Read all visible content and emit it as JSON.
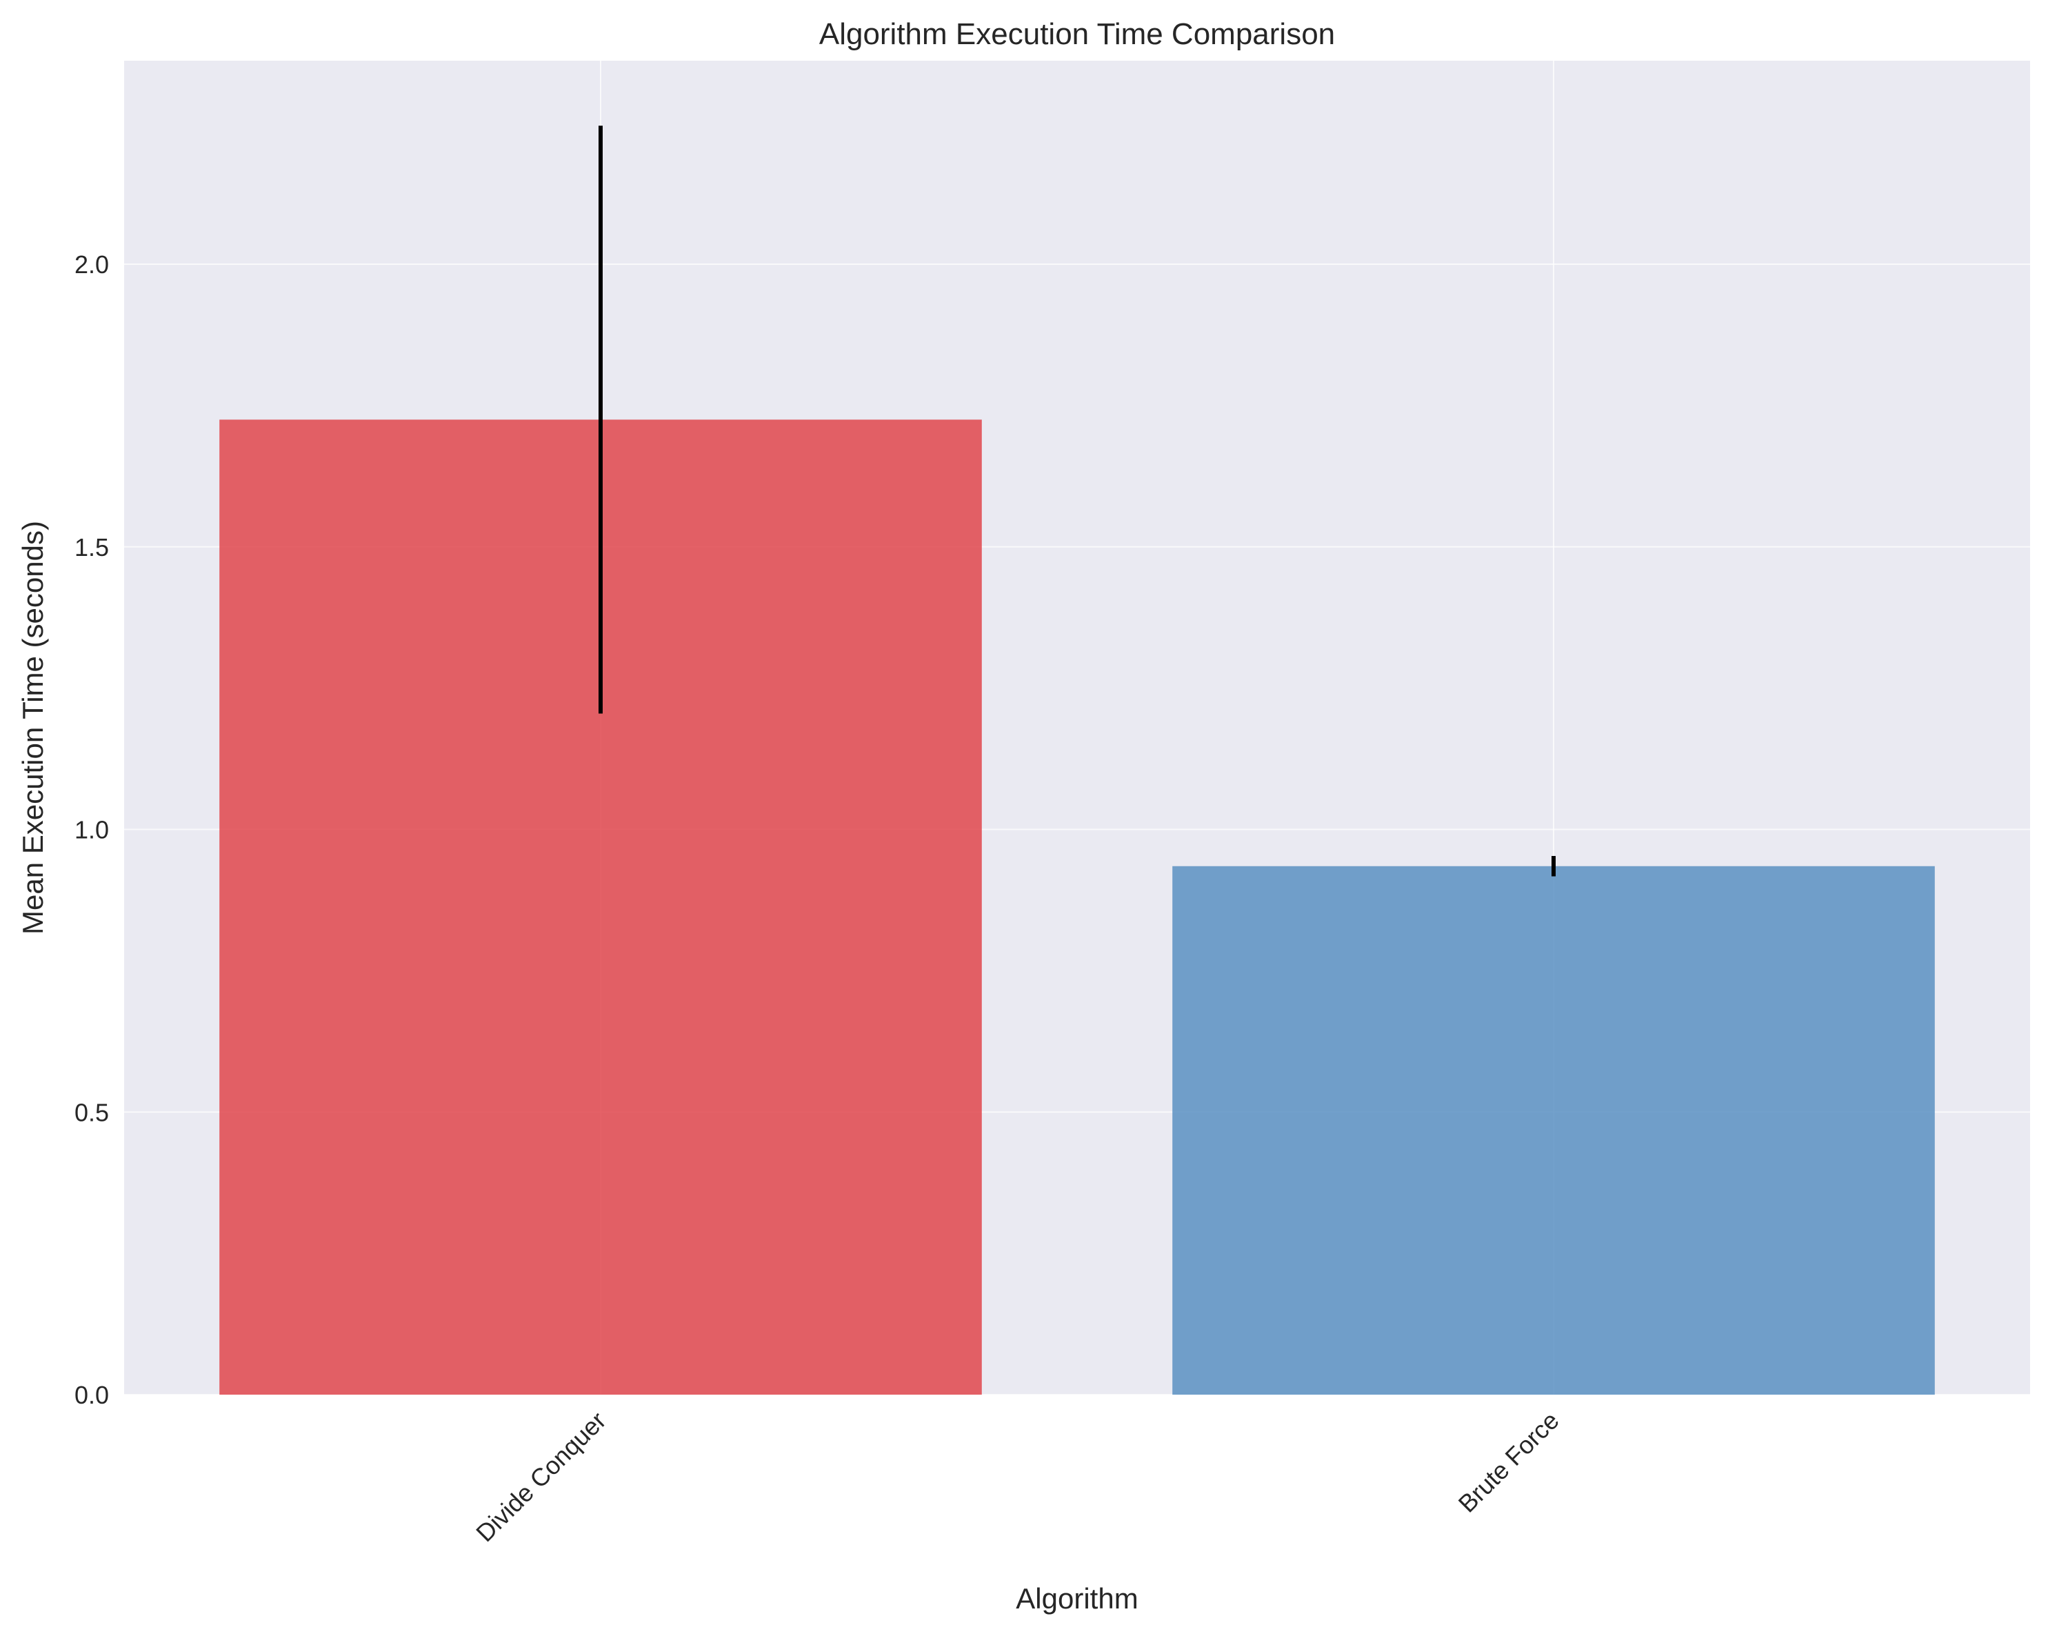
{
  "chart_data": {
    "type": "bar",
    "title": "Algorithm Execution Time Comparison",
    "xlabel": "Algorithm",
    "ylabel": "Mean Execution Time (seconds)",
    "categories": [
      "Divide Conquer",
      "Brute Force"
    ],
    "values": [
      1.725,
      0.935
    ],
    "error": [
      0.52,
      0.018
    ],
    "colors": [
      "#e0474c",
      "#5b90c2"
    ],
    "ylim": [
      0,
      2.36
    ],
    "yticks": [
      "0.0",
      "0.5",
      "1.0",
      "1.5",
      "2.0"
    ],
    "ytick_values": [
      0,
      0.5,
      1.0,
      1.5,
      2.0
    ],
    "grid": true,
    "background": "#eaeaf2",
    "errorbar_color": "#000000"
  }
}
